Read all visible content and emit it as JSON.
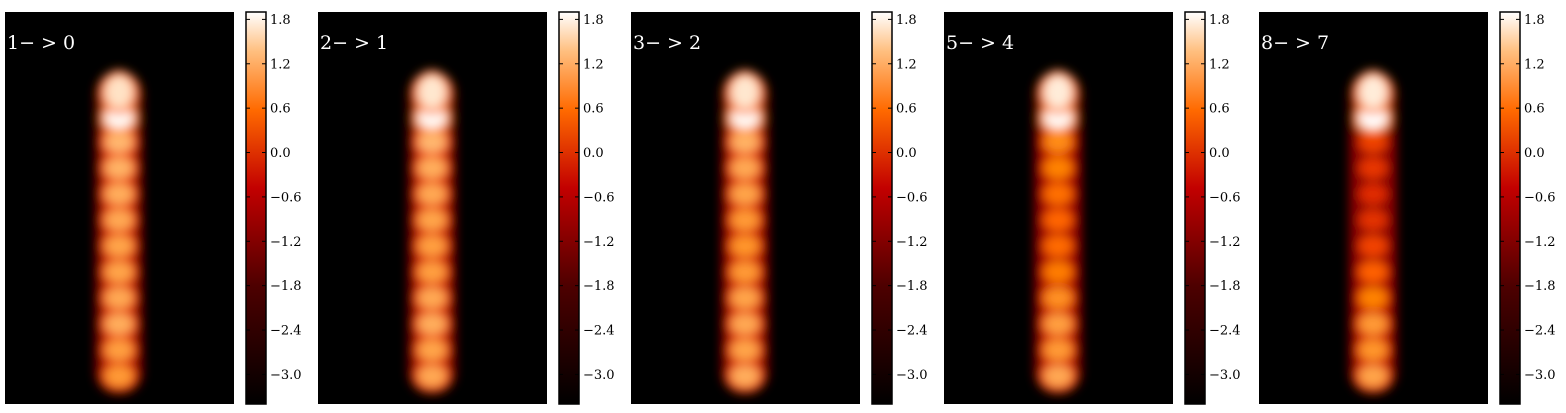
{
  "chart_data": {
    "type": "heatmap",
    "colormap": "gist_heat",
    "colorbar": {
      "range": [
        -3.4,
        1.9
      ],
      "ticks": [
        1.8,
        1.2,
        0.6,
        0.0,
        -0.6,
        -1.2,
        -1.8,
        -2.4,
        -3.0
      ],
      "tick_labels": [
        "1.8",
        "1.2",
        "0.6",
        "0.0",
        "−0.6",
        "−1.2",
        "−1.8",
        "−2.4",
        "−3.0"
      ]
    },
    "background_value": -3.4,
    "panels": [
      {
        "label": "1− > 0",
        "blobs": [
          0.85,
          0.9,
          1.05,
          1.0,
          0.95,
          0.95,
          1.0,
          1.05,
          1.1,
          1.15,
          1.85,
          1.6
        ]
      },
      {
        "label": "2− > 1",
        "blobs": [
          1.0,
          0.95,
          1.05,
          1.0,
          0.9,
          0.9,
          0.95,
          1.0,
          1.05,
          1.15,
          1.85,
          1.65
        ]
      },
      {
        "label": "3− > 2",
        "blobs": [
          1.05,
          0.95,
          1.0,
          0.95,
          0.85,
          0.8,
          0.85,
          0.95,
          1.0,
          1.1,
          1.85,
          1.65
        ]
      },
      {
        "label": "5− > 4",
        "blobs": [
          1.0,
          0.85,
          0.9,
          0.75,
          0.55,
          0.35,
          0.3,
          0.4,
          0.6,
          0.7,
          1.85,
          1.7
        ]
      },
      {
        "label": "8− > 7",
        "blobs": [
          0.95,
          0.8,
          0.85,
          0.6,
          0.25,
          -0.05,
          -0.25,
          -0.3,
          -0.2,
          -0.1,
          1.9,
          1.7
        ]
      }
    ]
  }
}
